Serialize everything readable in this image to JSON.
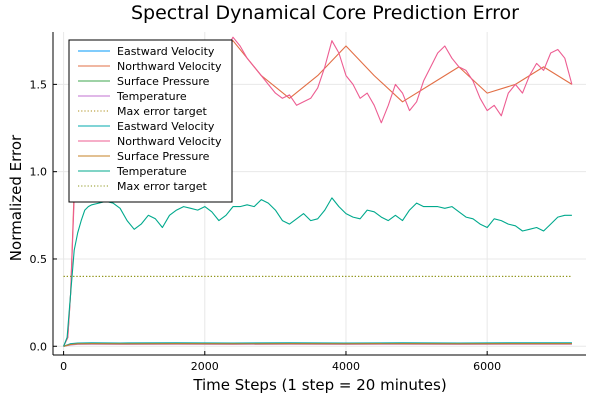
{
  "colors": {
    "eastward_velocity": "#009af9",
    "northward_velocity": "#e26f46",
    "surface_pressure": "#3da44d",
    "temperature": "#c271d2",
    "max_error_target": "#ac8d18",
    "eastward_velocity_2": "#00a9ad",
    "northward_velocity_2": "#ed5d92",
    "surface_pressure_2": "#c68125",
    "temperature_2": "#00a98d",
    "max_error_target_2": "#8e971e",
    "grid": "#e8e8e8",
    "frame": "#000000"
  },
  "chart_data": {
    "type": "line",
    "title": "Spectral Dynamical Core Prediction Error",
    "xlabel": "Time Steps (1 step = 20 minutes)",
    "ylabel": "Normalized Error",
    "xlim": [
      -150,
      7400
    ],
    "ylim": [
      -0.05,
      1.8
    ],
    "xticks": [
      0,
      2000,
      4000,
      6000
    ],
    "xtick_labels": [
      "0",
      "2000",
      "4000",
      "6000"
    ],
    "yticks": [
      0.0,
      0.5,
      1.0,
      1.5
    ],
    "ytick_labels": [
      "0.0",
      "0.5",
      "1.0",
      "1.5"
    ],
    "grid": true,
    "legend_position": "top-left",
    "series": [
      {
        "name": "Eastward Velocity",
        "color_key": "eastward_velocity",
        "style": "solid",
        "x": [
          0,
          100,
          200,
          400,
          800,
          1600,
          2400,
          3200,
          4000,
          4800,
          5600,
          6400,
          7200
        ],
        "y": [
          0,
          0.01,
          0.013,
          0.014,
          0.013,
          0.014,
          0.013,
          0.014,
          0.013,
          0.014,
          0.013,
          0.014,
          0.014
        ]
      },
      {
        "name": "Northward Velocity",
        "color_key": "northward_velocity",
        "style": "solid",
        "x": [
          0,
          60,
          100,
          150,
          250,
          400,
          600,
          800,
          1200,
          1600,
          2000,
          2400,
          2800,
          3200,
          3600,
          4000,
          4400,
          4800,
          5200,
          5600,
          6000,
          6400,
          6800,
          7200
        ],
        "y": [
          0,
          0.05,
          0.3,
          0.9,
          1.5,
          1.72,
          1.7,
          1.6,
          1.62,
          1.7,
          1.6,
          1.75,
          1.55,
          1.42,
          1.55,
          1.72,
          1.55,
          1.4,
          1.5,
          1.6,
          1.45,
          1.5,
          1.6,
          1.5
        ]
      },
      {
        "name": "Surface Pressure",
        "color_key": "surface_pressure",
        "style": "solid",
        "x": [
          0,
          100,
          200,
          400,
          800,
          1600,
          2400,
          3200,
          4000,
          4800,
          5600,
          6400,
          7200
        ],
        "y": [
          0,
          0.012,
          0.016,
          0.018,
          0.017,
          0.018,
          0.017,
          0.018,
          0.017,
          0.018,
          0.017,
          0.018,
          0.018
        ]
      },
      {
        "name": "Temperature",
        "color_key": "temperature",
        "style": "solid",
        "x": [
          0,
          100,
          200,
          400,
          800,
          1600,
          2400,
          3200,
          4000,
          4800,
          5600,
          6400,
          7200
        ],
        "y": [
          0,
          0.008,
          0.011,
          0.012,
          0.011,
          0.012,
          0.011,
          0.012,
          0.011,
          0.012,
          0.011,
          0.012,
          0.012
        ]
      },
      {
        "name": "Max error target",
        "color_key": "max_error_target",
        "style": "dotted",
        "x": [
          0,
          7200
        ],
        "y": [
          0.4,
          0.4
        ]
      },
      {
        "name": "Eastward Velocity",
        "color_key": "eastward_velocity_2",
        "style": "solid",
        "x": [
          0,
          100,
          200,
          400,
          800,
          1600,
          2400,
          3200,
          4000,
          4800,
          5600,
          6400,
          7200
        ],
        "y": [
          0,
          0.015,
          0.018,
          0.02,
          0.019,
          0.02,
          0.019,
          0.02,
          0.019,
          0.02,
          0.019,
          0.02,
          0.02
        ]
      },
      {
        "name": "Northward Velocity",
        "color_key": "northward_velocity_2",
        "style": "solid",
        "x": [
          0,
          60,
          100,
          150,
          200,
          250,
          300,
          400,
          500,
          600,
          700,
          800,
          900,
          1000,
          1100,
          1200,
          1300,
          1400,
          1500,
          1600,
          1700,
          1800,
          1900,
          2000,
          2100,
          2200,
          2300,
          2400,
          2500,
          2600,
          2700,
          2800,
          2900,
          3000,
          3100,
          3200,
          3300,
          3400,
          3500,
          3600,
          3700,
          3800,
          3900,
          4000,
          4100,
          4200,
          4300,
          4400,
          4500,
          4600,
          4700,
          4800,
          4900,
          5000,
          5100,
          5200,
          5300,
          5400,
          5500,
          5600,
          5700,
          5800,
          5900,
          6000,
          6100,
          6200,
          6300,
          6400,
          6500,
          6600,
          6700,
          6800,
          6900,
          7000,
          7100,
          7200
        ],
        "y": [
          0,
          0.05,
          0.3,
          0.85,
          1.3,
          1.55,
          1.65,
          1.7,
          1.72,
          1.75,
          1.73,
          1.7,
          1.72,
          1.73,
          1.68,
          1.62,
          1.56,
          1.6,
          1.55,
          1.45,
          1.55,
          1.6,
          1.62,
          1.58,
          1.55,
          1.5,
          1.7,
          1.77,
          1.72,
          1.65,
          1.6,
          1.55,
          1.5,
          1.45,
          1.42,
          1.44,
          1.38,
          1.4,
          1.42,
          1.48,
          1.6,
          1.75,
          1.68,
          1.55,
          1.5,
          1.42,
          1.45,
          1.38,
          1.28,
          1.38,
          1.5,
          1.45,
          1.35,
          1.4,
          1.52,
          1.6,
          1.68,
          1.72,
          1.65,
          1.6,
          1.58,
          1.52,
          1.42,
          1.35,
          1.38,
          1.32,
          1.45,
          1.5,
          1.45,
          1.55,
          1.62,
          1.58,
          1.68,
          1.7,
          1.65,
          1.5
        ]
      },
      {
        "name": "Surface Pressure",
        "color_key": "surface_pressure_2",
        "style": "solid",
        "x": [
          0,
          100,
          200,
          400,
          800,
          1600,
          2400,
          3200,
          4000,
          4800,
          5600,
          6400,
          7200
        ],
        "y": [
          0,
          0.01,
          0.014,
          0.015,
          0.014,
          0.015,
          0.014,
          0.015,
          0.014,
          0.015,
          0.014,
          0.015,
          0.015
        ]
      },
      {
        "name": "Temperature",
        "color_key": "temperature_2",
        "style": "solid",
        "x": [
          0,
          50,
          100,
          150,
          200,
          250,
          300,
          350,
          400,
          500,
          600,
          700,
          800,
          900,
          1000,
          1100,
          1200,
          1300,
          1400,
          1500,
          1600,
          1700,
          1800,
          1900,
          2000,
          2100,
          2200,
          2300,
          2400,
          2500,
          2600,
          2700,
          2800,
          2900,
          3000,
          3100,
          3200,
          3300,
          3400,
          3500,
          3600,
          3700,
          3800,
          3900,
          4000,
          4100,
          4200,
          4300,
          4400,
          4500,
          4600,
          4700,
          4800,
          4900,
          5000,
          5100,
          5200,
          5300,
          5400,
          5500,
          5600,
          5700,
          5800,
          5900,
          6000,
          6100,
          6200,
          6300,
          6400,
          6500,
          6600,
          6700,
          6800,
          6900,
          7000,
          7100,
          7200
        ],
        "y": [
          0,
          0.05,
          0.3,
          0.55,
          0.65,
          0.72,
          0.78,
          0.8,
          0.81,
          0.82,
          0.83,
          0.82,
          0.79,
          0.72,
          0.67,
          0.7,
          0.75,
          0.73,
          0.68,
          0.75,
          0.78,
          0.8,
          0.79,
          0.78,
          0.8,
          0.77,
          0.72,
          0.75,
          0.8,
          0.8,
          0.81,
          0.8,
          0.84,
          0.82,
          0.78,
          0.72,
          0.7,
          0.73,
          0.76,
          0.72,
          0.73,
          0.78,
          0.85,
          0.8,
          0.76,
          0.74,
          0.73,
          0.78,
          0.77,
          0.74,
          0.72,
          0.75,
          0.72,
          0.78,
          0.82,
          0.8,
          0.8,
          0.8,
          0.79,
          0.8,
          0.77,
          0.74,
          0.73,
          0.7,
          0.68,
          0.73,
          0.72,
          0.7,
          0.69,
          0.66,
          0.67,
          0.68,
          0.66,
          0.7,
          0.74,
          0.75,
          0.75
        ]
      },
      {
        "name": "Max error target",
        "color_key": "max_error_target_2",
        "style": "dotted",
        "x": [
          0,
          7200
        ],
        "y": [
          0.4,
          0.4
        ]
      }
    ]
  }
}
